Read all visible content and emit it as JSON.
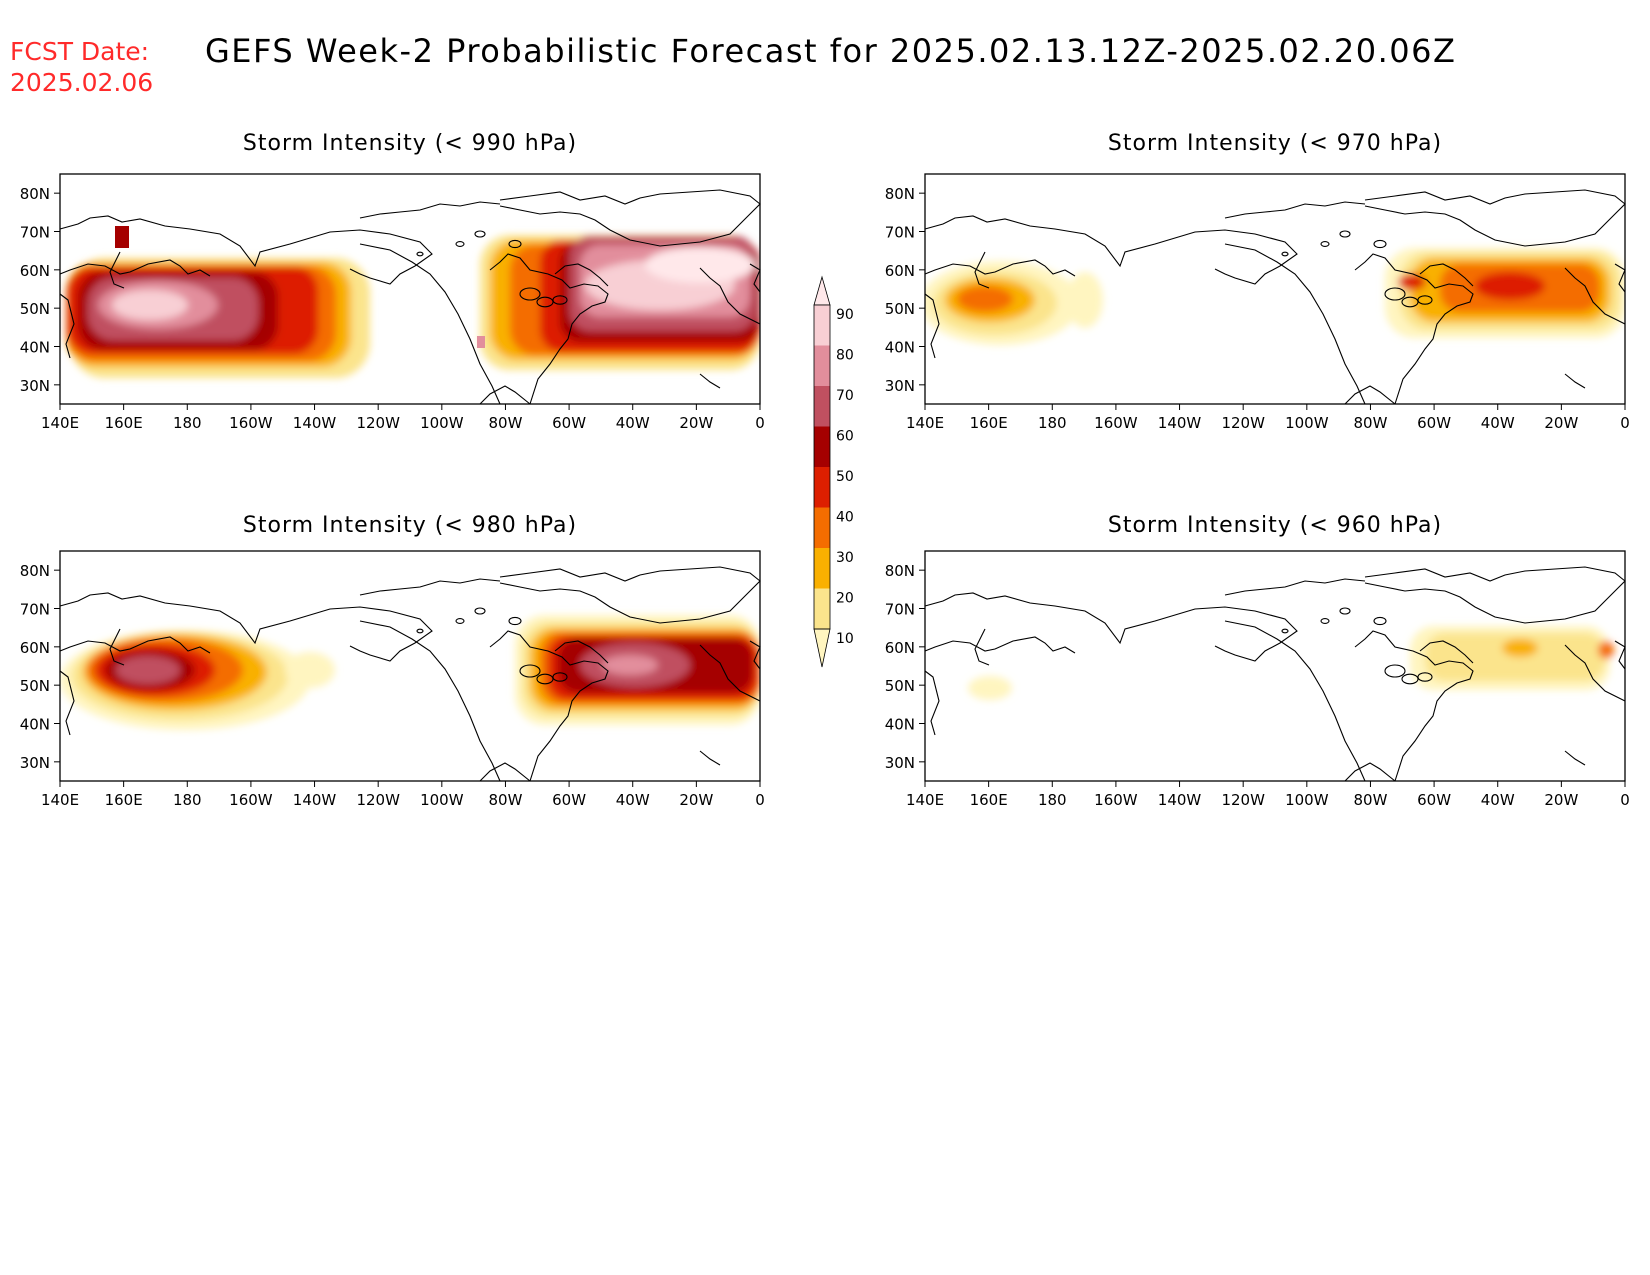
{
  "header": {
    "fcst_label": "FCST Date:",
    "fcst_date": "2025.02.06",
    "title": "GEFS Week-2 Probabilistic Forecast for 2025.02.13.12Z-2025.02.20.06Z"
  },
  "map_axes": {
    "lon_ticks": [
      "140E",
      "160E",
      "180",
      "160W",
      "140W",
      "120W",
      "100W",
      "80W",
      "60W",
      "40W",
      "20W",
      "0"
    ],
    "lat_ticks": [
      "80N",
      "70N",
      "60N",
      "50N",
      "40N",
      "30N"
    ]
  },
  "colorbar": {
    "levels": [
      "10",
      "20",
      "30",
      "40",
      "50",
      "60",
      "70",
      "80",
      "90"
    ],
    "colors": [
      "#fff5c0",
      "#fbe48c",
      "#f9b000",
      "#f46d00",
      "#dd1f00",
      "#a50000",
      "#c05060",
      "#e28e9c",
      "#f8cfd4",
      "#ffe8ea"
    ]
  },
  "panels": [
    {
      "title": "Storm Intensity (< 990 hPa)"
    },
    {
      "title": "Storm Intensity (< 970 hPa)"
    },
    {
      "title": "Storm Intensity (< 980 hPa)"
    },
    {
      "title": "Storm Intensity (< 960 hPa)"
    }
  ]
}
